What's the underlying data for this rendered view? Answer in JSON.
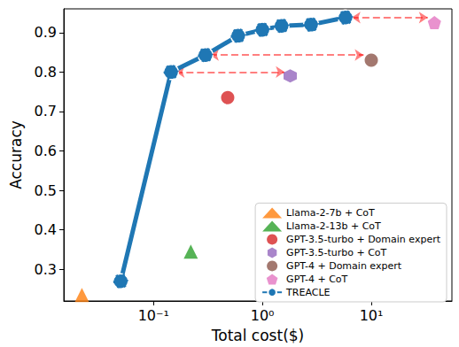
{
  "chart_data": {
    "type": "scatter",
    "xlabel": "Total cost($)",
    "ylabel": "Accuracy",
    "log": "x",
    "xlim": [
      0.015,
      55
    ],
    "ylim": [
      0.22,
      0.96
    ],
    "xticks": [
      {
        "value": 0.1,
        "label": "10⁻¹"
      },
      {
        "value": 1,
        "label": "10⁰"
      },
      {
        "value": 10,
        "label": "10¹"
      }
    ],
    "yticks": [
      0.3,
      0.4,
      0.5,
      0.6,
      0.7,
      0.8,
      0.9
    ],
    "grid": false,
    "legend": "lower right",
    "series": [
      {
        "name": "Llama-2-7b + CoT",
        "type": "scatter",
        "marker": "triangle",
        "color": "#ff7f0e",
        "x": [
          0.022
        ],
        "values": [
          0.235
        ]
      },
      {
        "name": "Llama-2-13b + CoT",
        "type": "scatter",
        "marker": "triangle",
        "color": "#2ca02c",
        "x": [
          0.22
        ],
        "values": [
          0.345
        ]
      },
      {
        "name": "GPT-3.5-turbo + Domain expert",
        "type": "scatter",
        "marker": "circle",
        "color": "#d62728",
        "x": [
          0.48
        ],
        "values": [
          0.735
        ]
      },
      {
        "name": "GPT-3.5-turbo + CoT",
        "type": "scatter",
        "marker": "hexagon",
        "color": "#9467bd",
        "x": [
          1.8
        ],
        "values": [
          0.79
        ]
      },
      {
        "name": "GPT-4 + Domain expert",
        "type": "scatter",
        "marker": "circle",
        "color": "#8c564b",
        "x": [
          10
        ],
        "values": [
          0.83
        ]
      },
      {
        "name": "GPT-4 + CoT",
        "type": "scatter",
        "marker": "pentagon",
        "color": "#e377c2",
        "x": [
          38
        ],
        "values": [
          0.925
        ]
      },
      {
        "name": "TREACLE",
        "type": "line",
        "marker": "circle",
        "color": "#1f77b4",
        "x": [
          0.05,
          0.145,
          0.3,
          0.6,
          1.0,
          1.5,
          2.8,
          5.8
        ],
        "values": [
          0.27,
          0.8,
          0.843,
          0.892,
          0.907,
          0.917,
          0.92,
          0.938
        ]
      }
    ],
    "arrows": [
      {
        "x": [
          0.16,
          1.6
        ],
        "values": [
          0.8,
          0.8
        ],
        "color": "#ff0000",
        "line_style": "dashed"
      },
      {
        "x": [
          0.33,
          8.5
        ],
        "values": [
          0.843,
          0.843
        ],
        "color": "#ff0000",
        "line_style": "dashed"
      },
      {
        "x": [
          6.6,
          33
        ],
        "values": [
          0.938,
          0.938
        ],
        "color": "#ff0000",
        "line_style": "dashed"
      }
    ]
  }
}
